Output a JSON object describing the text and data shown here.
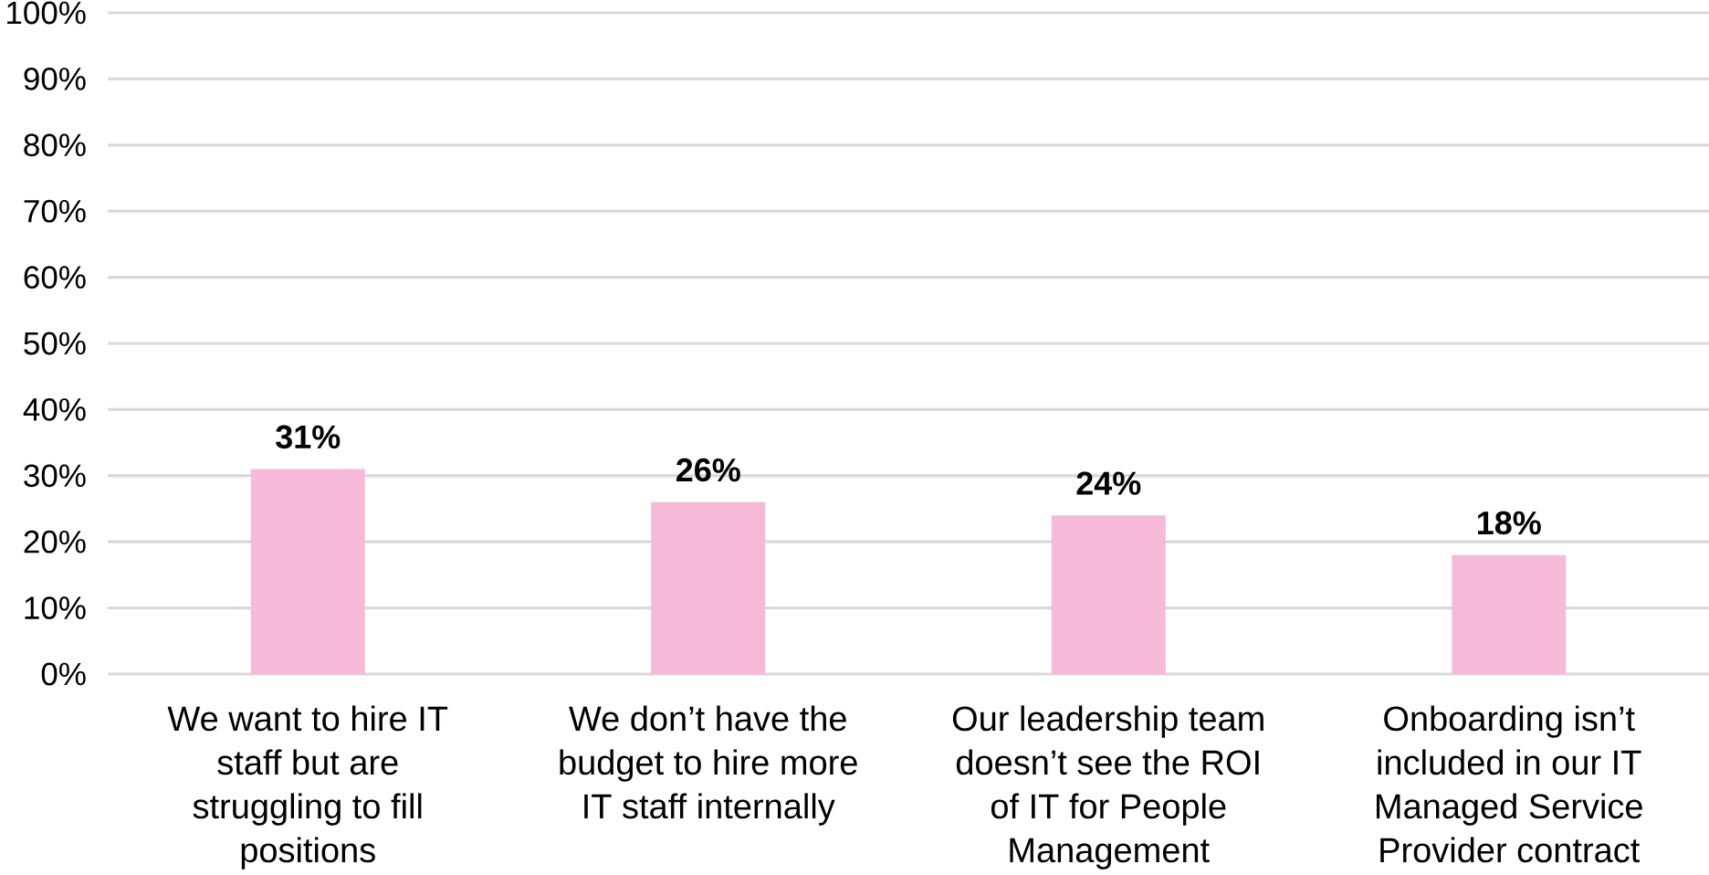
{
  "chart_data": {
    "type": "bar",
    "categories": [
      "We want to hire IT staff but are struggling to fill positions",
      "We don’t have the budget to hire more IT staff internally",
      "Our leadership team doesn’t see the ROI of IT for People Management",
      "Onboarding isn’t included in our IT Managed Service Provider contract"
    ],
    "values": [
      31,
      26,
      24,
      18
    ],
    "value_labels": [
      "31%",
      "26%",
      "24%",
      "18%"
    ],
    "color": "#f6b9d8",
    "ylim": [
      0,
      100
    ],
    "yticks": [
      {
        "value": 0,
        "label": "0%"
      },
      {
        "value": 10,
        "label": "10%"
      },
      {
        "value": 20,
        "label": "20%"
      },
      {
        "value": 30,
        "label": "30%"
      },
      {
        "value": 40,
        "label": "40%"
      },
      {
        "value": 50,
        "label": "50%"
      },
      {
        "value": 60,
        "label": "60%"
      },
      {
        "value": 70,
        "label": "70%"
      },
      {
        "value": 80,
        "label": "80%"
      },
      {
        "value": 90,
        "label": "90%"
      },
      {
        "value": 100,
        "label": "100%"
      }
    ],
    "grid": "y"
  }
}
